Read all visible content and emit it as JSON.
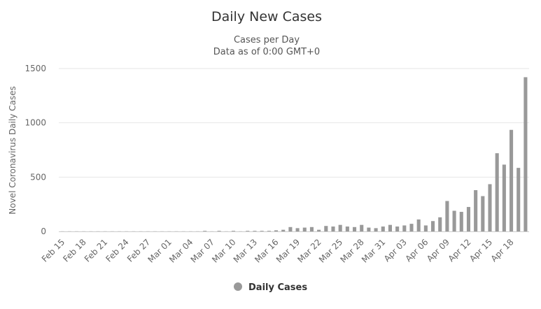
{
  "chart_data": {
    "type": "bar",
    "title": "Daily New Cases",
    "subtitle_lines": [
      "Cases per Day",
      "Data as of 0:00 GMT+0"
    ],
    "ylabel": "Novel Coronavirus Daily Cases",
    "xlabel": "",
    "ylim": [
      0,
      1500
    ],
    "yticks": [
      0,
      500,
      1000,
      1500
    ],
    "grid": true,
    "legend_position": "bottom-center",
    "series": [
      {
        "name": "Daily Cases",
        "color": "#999999",
        "categories": [
          "Feb 15",
          "Feb 16",
          "Feb 17",
          "Feb 18",
          "Feb 19",
          "Feb 20",
          "Feb 21",
          "Feb 22",
          "Feb 23",
          "Feb 24",
          "Feb 25",
          "Feb 26",
          "Feb 27",
          "Feb 28",
          "Feb 29",
          "Mar 01",
          "Mar 02",
          "Mar 03",
          "Mar 04",
          "Mar 05",
          "Mar 06",
          "Mar 07",
          "Mar 08",
          "Mar 09",
          "Mar 10",
          "Mar 11",
          "Mar 12",
          "Mar 13",
          "Mar 14",
          "Mar 15",
          "Mar 16",
          "Mar 17",
          "Mar 18",
          "Mar 19",
          "Mar 20",
          "Mar 21",
          "Mar 22",
          "Mar 23",
          "Mar 24",
          "Mar 25",
          "Mar 26",
          "Mar 27",
          "Mar 28",
          "Mar 29",
          "Mar 30",
          "Mar 31",
          "Apr 01",
          "Apr 02",
          "Apr 03",
          "Apr 04",
          "Apr 05",
          "Apr 06",
          "Apr 07",
          "Apr 08",
          "Apr 09",
          "Apr 10",
          "Apr 11",
          "Apr 12",
          "Apr 13",
          "Apr 14",
          "Apr 15",
          "Apr 16",
          "Apr 17",
          "Apr 18",
          "Apr 19",
          "Apr 20"
        ],
        "values": [
          1,
          1,
          1,
          1,
          1,
          1,
          1,
          1,
          1,
          1,
          1,
          1,
          1,
          1,
          1,
          1,
          1,
          1,
          1,
          1,
          5,
          1,
          5,
          1,
          5,
          1,
          5,
          5,
          5,
          5,
          10,
          15,
          40,
          30,
          35,
          40,
          15,
          50,
          45,
          60,
          45,
          40,
          60,
          35,
          30,
          45,
          60,
          45,
          55,
          70,
          110,
          55,
          95,
          130,
          280,
          190,
          180,
          225,
          380,
          325,
          435,
          720,
          615,
          935,
          585,
          1420
        ]
      }
    ],
    "x_tick_labels": [
      "Feb 15",
      "Feb 18",
      "Feb 21",
      "Feb 24",
      "Feb 27",
      "Mar 01",
      "Mar 04",
      "Mar 07",
      "Mar 10",
      "Mar 13",
      "Mar 16",
      "Mar 19",
      "Mar 22",
      "Mar 25",
      "Mar 28",
      "Mar 31",
      "Apr 03",
      "Apr 06",
      "Apr 09",
      "Apr 12",
      "Apr 15",
      "Apr 18"
    ],
    "legend": [
      {
        "label": "Daily Cases",
        "color": "#999999"
      }
    ]
  }
}
